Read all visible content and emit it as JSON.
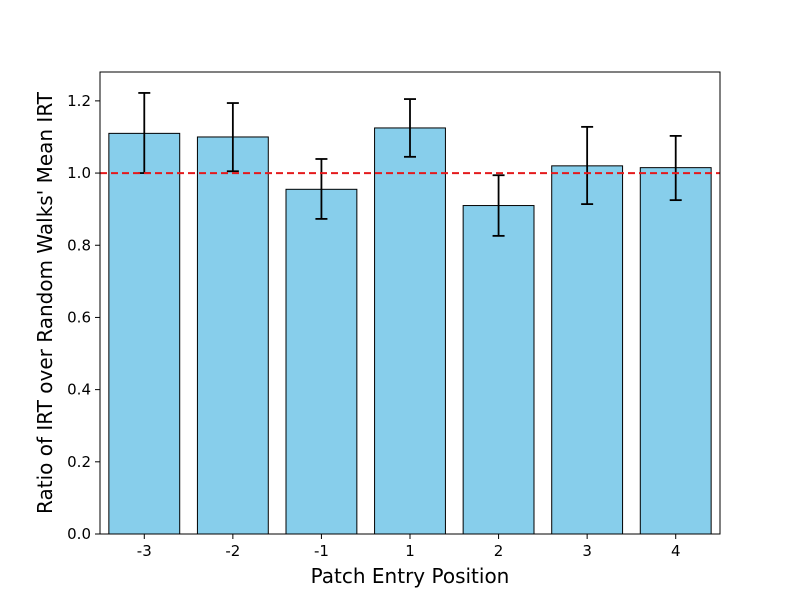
{
  "chart_data": {
    "type": "bar",
    "title": "",
    "xlabel": "Patch Entry Position",
    "ylabel": "Ratio of IRT over Random Walks' Mean IRT",
    "categories": [
      "-3",
      "-2",
      "-1",
      "1",
      "2",
      "3",
      "4"
    ],
    "values": [
      1.11,
      1.1,
      0.955,
      1.125,
      0.91,
      1.02,
      1.015
    ],
    "error_low": [
      1.0,
      1.005,
      0.873,
      1.045,
      0.826,
      0.914,
      0.925
    ],
    "error_high": [
      1.222,
      1.194,
      1.039,
      1.205,
      0.994,
      1.128,
      1.103
    ],
    "ylim": [
      0,
      1.28
    ],
    "yticks": [
      "0.0",
      "0.2",
      "0.4",
      "0.6",
      "0.8",
      "1.0",
      "1.2"
    ],
    "reference_line": {
      "y": 1.0,
      "style": "dashed",
      "color": "#e41a1c"
    },
    "bar_color": "#87ceeb",
    "bar_edge_color": "#000000",
    "grid": false
  }
}
